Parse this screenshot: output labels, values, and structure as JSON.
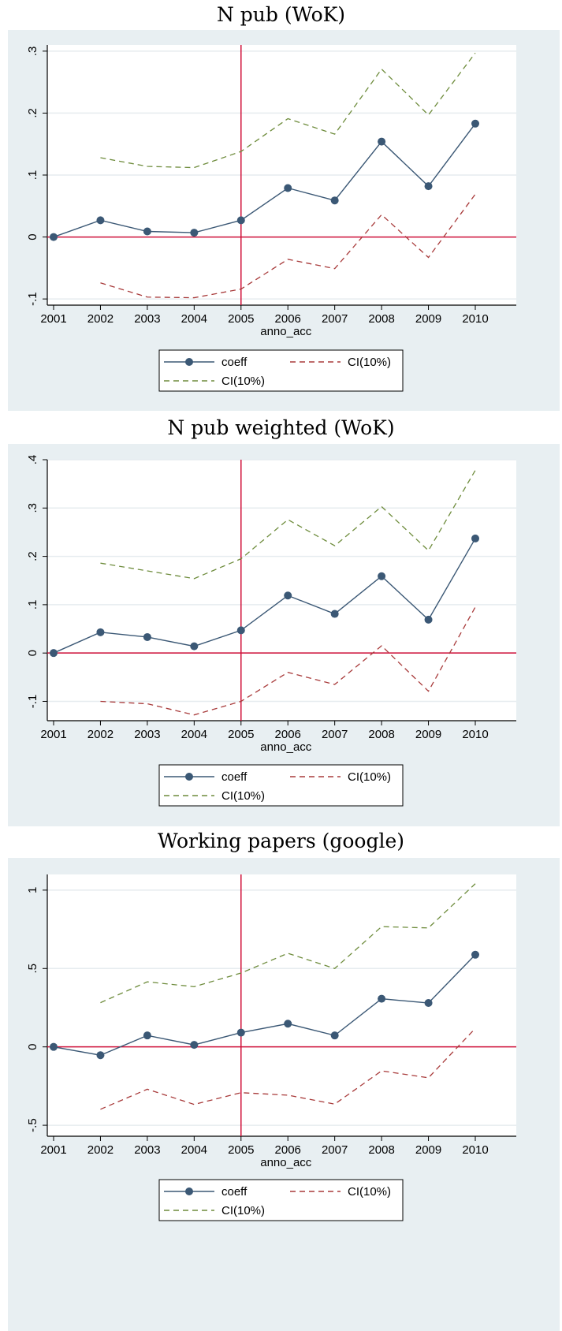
{
  "chart_data": [
    {
      "type": "line",
      "title": "N pub (WoK)",
      "xlabel": "anno_acc",
      "ylabel": "",
      "x": [
        2001,
        2002,
        2003,
        2004,
        2005,
        2006,
        2007,
        2008,
        2009,
        2010
      ],
      "xticks": [
        "2001",
        "2002",
        "2003",
        "2004",
        "2005",
        "2006",
        "2007",
        "2008",
        "2009",
        "2010"
      ],
      "yticks": [
        -0.1,
        0,
        0.1,
        0.2,
        0.3
      ],
      "ytick_labels": [
        "-.1",
        "0",
        ".1",
        ".2",
        ".3"
      ],
      "ylim": [
        -0.11,
        0.31
      ],
      "ref_x": 2005,
      "ref_y": 0,
      "grid": true,
      "legend_position": "bottom",
      "series": [
        {
          "name": "coeff",
          "style": "solid-marker",
          "color": "#3b5875",
          "values": [
            0,
            0.027,
            0.009,
            0.007,
            0.027,
            0.079,
            0.059,
            0.154,
            0.082,
            0.183
          ]
        },
        {
          "name": "CI(10%)",
          "style": "dashed",
          "color": "#a83a3a",
          "values": [
            null,
            -0.074,
            -0.097,
            -0.098,
            -0.084,
            -0.036,
            -0.051,
            0.036,
            -0.033,
            0.069
          ]
        },
        {
          "name": "CI(10%)",
          "style": "dashed",
          "color": "#6e8c3c",
          "values": [
            null,
            0.128,
            0.114,
            0.112,
            0.138,
            0.191,
            0.166,
            0.271,
            0.197,
            0.297
          ]
        }
      ]
    },
    {
      "type": "line",
      "title": "N pub weighted (WoK)",
      "xlabel": "anno_acc",
      "ylabel": "",
      "x": [
        2001,
        2002,
        2003,
        2004,
        2005,
        2006,
        2007,
        2008,
        2009,
        2010
      ],
      "xticks": [
        "2001",
        "2002",
        "2003",
        "2004",
        "2005",
        "2006",
        "2007",
        "2008",
        "2009",
        "2010"
      ],
      "yticks": [
        -0.1,
        0,
        0.1,
        0.2,
        0.3,
        0.4
      ],
      "ytick_labels": [
        "-.1",
        "0",
        ".1",
        ".2",
        ".3",
        ".4"
      ],
      "ylim": [
        -0.14,
        0.4
      ],
      "ref_x": 2005,
      "ref_y": 0,
      "grid": true,
      "legend_position": "bottom",
      "series": [
        {
          "name": "coeff",
          "style": "solid-marker",
          "color": "#3b5875",
          "values": [
            0,
            0.043,
            0.033,
            0.014,
            0.047,
            0.119,
            0.081,
            0.159,
            0.069,
            0.237
          ]
        },
        {
          "name": "CI(10%)",
          "style": "dashed",
          "color": "#a83a3a",
          "values": [
            null,
            -0.1,
            -0.105,
            -0.128,
            -0.1,
            -0.04,
            -0.065,
            0.015,
            -0.079,
            0.095
          ]
        },
        {
          "name": "CI(10%)",
          "style": "dashed",
          "color": "#6e8c3c",
          "values": [
            null,
            0.186,
            0.17,
            0.154,
            0.195,
            0.276,
            0.222,
            0.303,
            0.212,
            0.378
          ]
        }
      ]
    },
    {
      "type": "line",
      "title": "Working papers (google)",
      "xlabel": "anno_acc",
      "ylabel": "",
      "x": [
        2001,
        2002,
        2003,
        2004,
        2005,
        2006,
        2007,
        2008,
        2009,
        2010
      ],
      "xticks": [
        "2001",
        "2002",
        "2003",
        "2004",
        "2005",
        "2006",
        "2007",
        "2008",
        "2009",
        "2010"
      ],
      "yticks": [
        -0.5,
        0,
        0.5,
        1
      ],
      "ytick_labels": [
        "-.5",
        "0",
        ".5",
        "1"
      ],
      "ylim": [
        -0.57,
        1.1
      ],
      "ref_x": 2005,
      "ref_y": 0,
      "grid": true,
      "legend_position": "bottom",
      "series": [
        {
          "name": "coeff",
          "style": "solid-marker",
          "color": "#3b5875",
          "values": [
            0,
            -0.053,
            0.073,
            0.013,
            0.091,
            0.148,
            0.073,
            0.307,
            0.28,
            0.588
          ]
        },
        {
          "name": "CI(10%)",
          "style": "dashed",
          "color": "#a83a3a",
          "values": [
            null,
            -0.398,
            -0.27,
            -0.367,
            -0.292,
            -0.308,
            -0.365,
            -0.153,
            -0.197,
            0.118
          ]
        },
        {
          "name": "CI(10%)",
          "style": "dashed",
          "color": "#6e8c3c",
          "values": [
            null,
            0.282,
            0.415,
            0.384,
            0.471,
            0.597,
            0.5,
            0.767,
            0.759,
            1.041
          ]
        }
      ]
    }
  ],
  "colors": {
    "panel_background": "#e8eff2",
    "plot_background": "#ffffff",
    "grid": "#e6ecef",
    "reference_line": "#d0113a",
    "coeff": "#3b5875",
    "ci_lower": "#a83a3a",
    "ci_upper": "#6e8c3c"
  }
}
